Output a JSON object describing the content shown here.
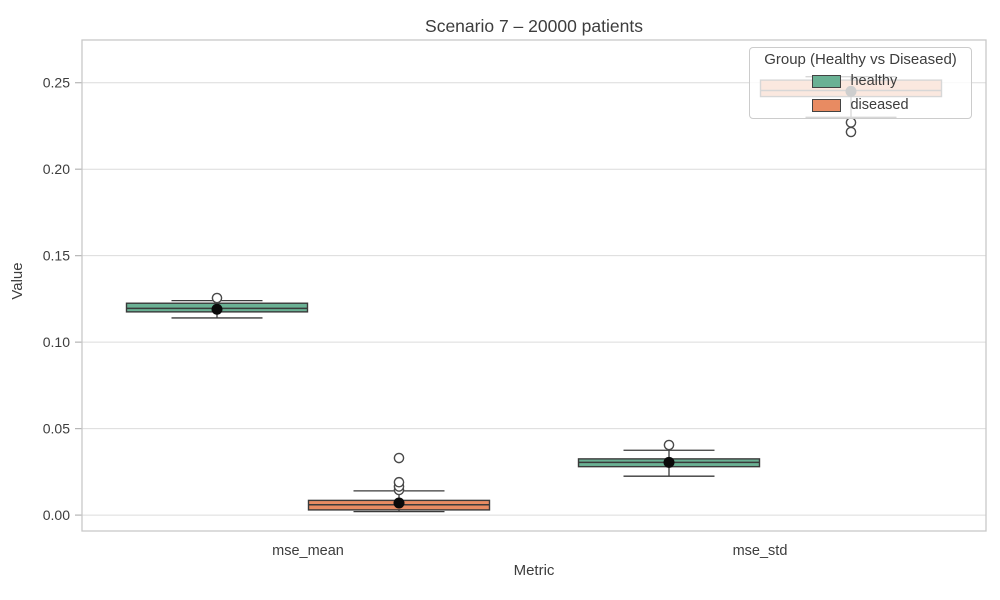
{
  "chart_data": {
    "type": "boxplot",
    "title": "Scenario 7 – 20000 patients",
    "xlabel": "Metric",
    "ylabel": "Value",
    "categories": [
      "mse_mean",
      "mse_std"
    ],
    "yticks": [
      0.0,
      0.05,
      0.1,
      0.15,
      0.2,
      0.25
    ],
    "ylim": [
      -0.0092,
      0.2747
    ],
    "grid": "horizontal",
    "legend": {
      "title": "Group (Healthy vs Diseased)",
      "position": "upper right",
      "entries": [
        {
          "label": "healthy",
          "color": "#6ab194"
        },
        {
          "label": "diseased",
          "color": "#e88b62"
        }
      ]
    },
    "series": [
      {
        "group": "healthy",
        "color": "#6ab194",
        "boxes": [
          {
            "category": "mse_mean",
            "whisker_low": 0.114,
            "q1": 0.1175,
            "median": 0.1195,
            "q3": 0.1225,
            "whisker_high": 0.124,
            "mean": 0.119,
            "outliers": [
              0.1255
            ]
          },
          {
            "category": "mse_std",
            "whisker_low": 0.0225,
            "q1": 0.028,
            "median": 0.0305,
            "q3": 0.0325,
            "whisker_high": 0.0375,
            "mean": 0.0305,
            "outliers": [
              0.0405
            ]
          }
        ]
      },
      {
        "group": "diseased",
        "color": "#e88b62",
        "boxes": [
          {
            "category": "mse_mean",
            "whisker_low": 0.002,
            "q1": 0.003,
            "median": 0.006,
            "q3": 0.0085,
            "whisker_high": 0.014,
            "mean": 0.007,
            "outliers": [
              0.0145,
              0.0165,
              0.019,
              0.033
            ]
          },
          {
            "category": "mse_std",
            "whisker_low": 0.23,
            "q1": 0.242,
            "median": 0.2455,
            "q3": 0.2515,
            "whisker_high": 0.2535,
            "mean": 0.245,
            "outliers": [
              0.227,
              0.2215
            ]
          }
        ]
      }
    ],
    "style": {
      "edge_color": "#3a3a3a",
      "grid_color": "#dcdcdc",
      "spine_color": "#c8c8c8",
      "text_color": "#3d3d3d",
      "mean_marker_color": "#0a0a0a",
      "outlier_edge_color": "#4a4a4a",
      "background": "#ffffff"
    }
  }
}
